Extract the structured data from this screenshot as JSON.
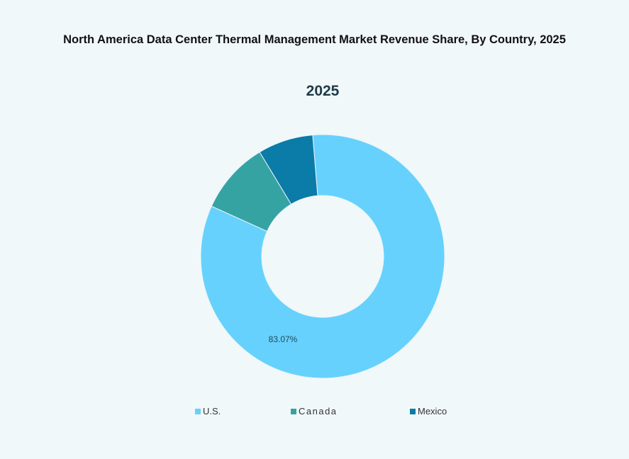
{
  "title": "North America Data Center Thermal Management Market Revenue Share, By Country, 2025",
  "chart_data": {
    "type": "pie",
    "subtitle": "2025",
    "donut": true,
    "categories": [
      "U.S.",
      "Canada",
      "Mexico"
    ],
    "values": [
      83.07,
      9.6,
      7.33
    ],
    "colors": [
      "#66d1fc",
      "#36a3a3",
      "#0b7ba7"
    ],
    "data_labels": [
      "83.07%",
      null,
      null
    ],
    "legend_position": "bottom"
  }
}
